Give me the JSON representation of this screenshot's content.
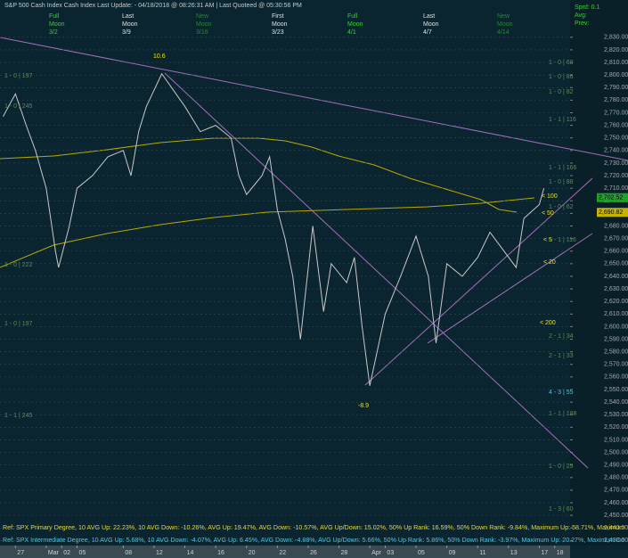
{
  "chart_data": {
    "type": "line",
    "title": "S&P 500 Cash Index   Cash Index   Last Update:  - 04/18/2018 @ 08:26:31 AM | Last Quoteed @ 05:30:56 PM",
    "moon_phases": [
      {
        "phase": "Full",
        "word": "Moon",
        "date": "3/2"
      },
      {
        "phase": "Last",
        "word": "Moon",
        "date": "3/9"
      },
      {
        "phase": "New",
        "word": "Moon",
        "date": "3/16"
      },
      {
        "phase": "First",
        "word": "Moon",
        "date": "3/23"
      },
      {
        "phase": "Full",
        "word": "Moon",
        "date": "4/1"
      },
      {
        "phase": "Last",
        "word": "Moon",
        "date": "4/7"
      },
      {
        "phase": "New",
        "word": "Moon",
        "date": "4/14"
      }
    ],
    "info": [
      "Sprd: 0.1",
      "Avg:",
      "Prev:"
    ],
    "series": [
      {
        "color": "#c8c8c8",
        "x": [
          -0.8,
          0,
          0.7,
          1.3,
          2,
          2.6,
          2.8,
          3.5,
          4,
          5,
          6,
          7,
          7.5,
          8,
          8.5,
          9.5,
          11,
          12,
          13,
          14,
          14.5,
          15,
          16,
          16.5,
          17,
          17.5,
          18,
          18.5,
          19.3,
          20,
          20.5,
          21.5,
          22,
          22.5,
          23,
          24,
          25,
          26,
          26.8,
          27.3,
          28,
          29,
          30,
          30.8,
          32.5,
          33,
          34,
          34.3
        ],
        "values": [
          2767,
          2785,
          2760,
          2740,
          2710,
          2660,
          2647,
          2680,
          2710,
          2720,
          2735,
          2740,
          2720,
          2755,
          2775,
          2801,
          2775,
          2755,
          2760,
          2750,
          2720,
          2705,
          2720,
          2735,
          2693,
          2670,
          2640,
          2590,
          2680,
          2612,
          2650,
          2635,
          2655,
          2600,
          2553,
          2610,
          2640,
          2672,
          2640,
          2587,
          2650,
          2640,
          2655,
          2675,
          2647,
          2686,
          2697,
          2710
        ]
      }
    ],
    "xlim": [
      -1,
      36
    ],
    "xticks": [
      {
        "value": 0,
        "label": "27"
      },
      {
        "value": 2,
        "label": "Mar"
      },
      {
        "value": 3,
        "label": "02"
      },
      {
        "value": 4,
        "label": "05"
      },
      {
        "value": 7,
        "label": "08"
      },
      {
        "value": 9,
        "label": "12"
      },
      {
        "value": 11,
        "label": "14"
      },
      {
        "value": 13,
        "label": "16"
      },
      {
        "value": 15,
        "label": "20"
      },
      {
        "value": 17,
        "label": "22"
      },
      {
        "value": 19,
        "label": "26"
      },
      {
        "value": 21,
        "label": "28"
      },
      {
        "value": 23,
        "label": "Apr"
      },
      {
        "value": 24,
        "label": "03"
      },
      {
        "value": 26,
        "label": "05"
      },
      {
        "value": 28,
        "label": "09"
      },
      {
        "value": 30,
        "label": "11"
      },
      {
        "value": 32,
        "label": "13"
      },
      {
        "value": 34,
        "label": "17"
      },
      {
        "value": 35,
        "label": "18"
      }
    ],
    "ylim": [
      2426,
      2849
    ],
    "yticks": [
      {
        "value": 2430,
        "label": "2,430.00"
      },
      {
        "value": 2440,
        "label": "2,440.00"
      },
      {
        "value": 2450,
        "label": "2,450.00"
      },
      {
        "value": 2460,
        "label": "2,460.00"
      },
      {
        "value": 2470,
        "label": "2,470.00"
      },
      {
        "value": 2480,
        "label": "2,480.00"
      },
      {
        "value": 2490,
        "label": "2,490.00"
      },
      {
        "value": 2500,
        "label": "2,500.00"
      },
      {
        "value": 2510,
        "label": "2,510.00"
      },
      {
        "value": 2520,
        "label": "2,520.00"
      },
      {
        "value": 2530,
        "label": "2,530.00"
      },
      {
        "value": 2540,
        "label": "2,540.00"
      },
      {
        "value": 2550,
        "label": "2,550.00"
      },
      {
        "value": 2560,
        "label": "2,560.00"
      },
      {
        "value": 2570,
        "label": "2,570.00"
      },
      {
        "value": 2580,
        "label": "2,580.00"
      },
      {
        "value": 2590,
        "label": "2,590.00"
      },
      {
        "value": 2600,
        "label": "2,600.00"
      },
      {
        "value": 2610,
        "label": "2,610.00"
      },
      {
        "value": 2620,
        "label": "2,620.00"
      },
      {
        "value": 2630,
        "label": "2,630.00"
      },
      {
        "value": 2640,
        "label": "2,640.00"
      },
      {
        "value": 2650,
        "label": "2,650.00"
      },
      {
        "value": 2660,
        "label": "2,660.00"
      },
      {
        "value": 2670,
        "label": "2,670.00"
      },
      {
        "value": 2680,
        "label": "2,680.00"
      },
      {
        "value": 2690,
        "label": "2,690.00"
      },
      {
        "value": 2700,
        "label": "2,700.00"
      },
      {
        "value": 2710,
        "label": "2,710.00"
      },
      {
        "value": 2720,
        "label": "2,720.00"
      },
      {
        "value": 2730,
        "label": "2,730.00"
      },
      {
        "value": 2740,
        "label": "2,740.00"
      },
      {
        "value": 2750,
        "label": "2,750.00"
      },
      {
        "value": 2760,
        "label": "2,760.00"
      },
      {
        "value": 2770,
        "label": "2,770.00"
      },
      {
        "value": 2780,
        "label": "2,780.00"
      },
      {
        "value": 2790,
        "label": "2,790.00"
      },
      {
        "value": 2800,
        "label": "2,800.00"
      },
      {
        "value": 2810,
        "label": "2,810.00"
      },
      {
        "value": 2820,
        "label": "2,820.00"
      },
      {
        "value": 2830,
        "label": "2,830.00"
      }
    ],
    "price_labels": [
      {
        "value": 2702.52,
        "label": "2,702.52"
      },
      {
        "value": 2690.82,
        "label": "2,690.82"
      }
    ],
    "grid": true,
    "annotations": [
      "10.6",
      "-8.9",
      "< 100",
      "< 50",
      "< 5",
      "< 20",
      "< 200"
    ],
    "gann_labels": [
      "1 - 0 | 197",
      "1 - 0 | 245",
      "1 - 0 | 222",
      "1 - 0 | 197",
      "1 - 1 | 245",
      "1 - 0 | 60",
      "1 - 0 | 86",
      "1 - 0 | 82",
      "1 - 1 | 116",
      "1 - 1 | 166",
      "1 - 0 | 88",
      "1 - 0 | 62",
      "1 - 1 | 116",
      "2 - 1 | 34",
      "2 - 1 | 33",
      "4 - 3 | 55",
      "1 - 1 | 188",
      "1 - 0 | 25",
      "1 - 3 | 60"
    ],
    "footer": [
      "Ref: SPX Primary Degree, 10 AVG Up: 22.23%, 10 AVG Down: -10.26%, AVG Up: 19.47%, AVG Down: -10.57%, AVG Up/Down: 15.02%, 50%  Up Rank: 16.59%, 50% Down Rank: -9.84%, Maximum Up: 58.71%, Maximum",
      "Ref: SPX Intermediate Degree, 10 AVG Up: 5.68%, 10 AVG Down: -4.07%, AVG Up: 6.45%, AVG Down: -4.88%, AVG Up/Down: 5.66%, 50%  Up Rank: 5.86%, 50% Down Rank: -3.97%, Maximum Up: 20.27%, Maximum Do"
    ]
  }
}
